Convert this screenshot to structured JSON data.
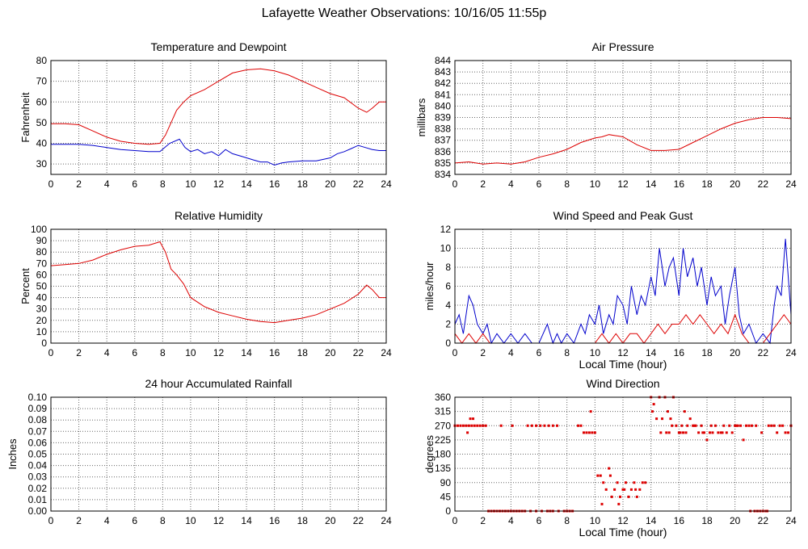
{
  "page": {
    "title": "Lafayette Weather Observations: 10/16/05 11:55p"
  },
  "colors": {
    "red": "#dd0000",
    "blue": "#0000cc",
    "grid": "#666666",
    "frame": "#000000"
  },
  "chart_data": [
    {
      "id": "temp",
      "type": "line",
      "title": "Temperature and Dewpoint",
      "xlabel": "",
      "ylabel": "Fahrenheit",
      "xlim": [
        0,
        24
      ],
      "ylim": [
        25,
        80
      ],
      "xticks": [
        0,
        2,
        4,
        6,
        8,
        10,
        12,
        14,
        16,
        18,
        20,
        22,
        24
      ],
      "yticks": [
        30,
        40,
        50,
        60,
        70,
        80
      ],
      "grid": true,
      "series": [
        {
          "color": "red",
          "x": [
            0,
            1,
            2,
            3,
            4,
            5,
            6,
            7,
            7.8,
            8.2,
            8.6,
            9,
            9.5,
            10,
            11,
            12,
            13,
            14,
            15,
            16,
            17,
            18,
            19,
            20,
            21,
            22,
            22.6,
            23,
            23.5,
            24
          ],
          "y": [
            49.5,
            49.5,
            49,
            46,
            43,
            41,
            40,
            39.5,
            40,
            44,
            50,
            56,
            60,
            63,
            66,
            70,
            74,
            75.5,
            76,
            75,
            73,
            70,
            67,
            64,
            62,
            57,
            55,
            57,
            60,
            60
          ]
        },
        {
          "color": "blue",
          "x": [
            0,
            1,
            2,
            3,
            4,
            5,
            6,
            7,
            7.8,
            8.5,
            9.2,
            9.6,
            10,
            10.5,
            11,
            11.5,
            12,
            12.5,
            13,
            13.5,
            14,
            14.5,
            15,
            15.5,
            16,
            16.5,
            17,
            18,
            19,
            20,
            20.5,
            21,
            21.5,
            22,
            22.5,
            23,
            23.5,
            24
          ],
          "y": [
            39.5,
            39.5,
            39.5,
            39,
            38,
            37,
            36.5,
            36,
            36,
            40,
            42,
            38,
            36,
            37,
            35,
            36,
            34,
            37,
            35,
            34,
            33,
            32,
            31,
            31,
            29.5,
            30.5,
            31,
            31.5,
            31.5,
            33,
            35,
            36,
            37.5,
            39,
            38,
            37,
            36.5,
            36.5
          ]
        }
      ]
    },
    {
      "id": "pressure",
      "type": "line",
      "title": "Air Pressure",
      "xlabel": "",
      "ylabel": "millibars",
      "xlim": [
        0,
        24
      ],
      "ylim": [
        834,
        844
      ],
      "xticks": [
        0,
        2,
        4,
        6,
        8,
        10,
        12,
        14,
        16,
        18,
        20,
        22,
        24
      ],
      "yticks": [
        834,
        835,
        836,
        837,
        838,
        839,
        840,
        841,
        842,
        843,
        844
      ],
      "grid": true,
      "series": [
        {
          "color": "red",
          "x": [
            0,
            1,
            2,
            3,
            4,
            5,
            6,
            7,
            8,
            9,
            10,
            10.5,
            11,
            12,
            13,
            14,
            15,
            16,
            17,
            18,
            19,
            20,
            21,
            22,
            23,
            24
          ],
          "y": [
            835,
            835.1,
            834.9,
            835,
            834.9,
            835.1,
            835.5,
            835.8,
            836.2,
            836.8,
            837.2,
            837.3,
            837.5,
            837.3,
            836.6,
            836.1,
            836.1,
            836.2,
            836.8,
            837.4,
            838,
            838.5,
            838.8,
            839,
            839,
            838.9
          ]
        }
      ]
    },
    {
      "id": "humidity",
      "type": "line",
      "title": "Relative Humidity",
      "xlabel": "",
      "ylabel": "Percent",
      "xlim": [
        0,
        24
      ],
      "ylim": [
        0,
        100
      ],
      "xticks": [
        0,
        2,
        4,
        6,
        8,
        10,
        12,
        14,
        16,
        18,
        20,
        22,
        24
      ],
      "yticks": [
        0,
        10,
        20,
        30,
        40,
        50,
        60,
        70,
        80,
        90,
        100
      ],
      "grid": true,
      "series": [
        {
          "color": "red",
          "x": [
            0,
            1,
            2,
            3,
            4,
            5,
            6,
            7,
            7.8,
            8.2,
            8.6,
            9,
            9.5,
            10,
            11,
            12,
            13,
            14,
            15,
            16,
            17,
            18,
            19,
            20,
            21,
            22,
            22.6,
            23,
            23.5,
            24
          ],
          "y": [
            68,
            69,
            70,
            73,
            78,
            82,
            85,
            86,
            89,
            80,
            65,
            60,
            52,
            40,
            32,
            27,
            24,
            21,
            19,
            18,
            20,
            22,
            25,
            30,
            35,
            43,
            51,
            47,
            40,
            40
          ]
        }
      ]
    },
    {
      "id": "wind",
      "type": "line",
      "title": "Wind Speed and Peak Gust",
      "xlabel": "Local Time (hour)",
      "ylabel": "miles/hour",
      "xlim": [
        0,
        24
      ],
      "ylim": [
        0,
        12
      ],
      "xticks": [
        0,
        2,
        4,
        6,
        8,
        10,
        12,
        14,
        16,
        18,
        20,
        22,
        24
      ],
      "yticks": [
        0,
        2,
        4,
        6,
        8,
        10,
        12
      ],
      "grid": true,
      "series": [
        {
          "color": "blue",
          "x": [
            0,
            0.3,
            0.6,
            1,
            1.3,
            1.6,
            2,
            2.3,
            2.6,
            3,
            3.5,
            4,
            4.5,
            5,
            5.5,
            6,
            6.3,
            6.6,
            7,
            7.3,
            7.6,
            8,
            8.5,
            9,
            9.3,
            9.6,
            10,
            10.3,
            10.6,
            11,
            11.3,
            11.6,
            12,
            12.3,
            12.6,
            13,
            13.3,
            13.6,
            14,
            14.3,
            14.6,
            15,
            15.3,
            15.6,
            16,
            16.3,
            16.6,
            17,
            17.3,
            17.6,
            18,
            18.3,
            18.6,
            19,
            19.3,
            19.6,
            20,
            20.3,
            20.6,
            21,
            21.5,
            22,
            22.5,
            22.8,
            23,
            23.3,
            23.6,
            24
          ],
          "y": [
            2,
            3,
            1,
            5,
            4,
            2,
            1,
            2,
            0,
            1,
            0,
            1,
            0,
            1,
            0,
            0,
            1,
            2,
            0,
            1,
            0,
            1,
            0,
            2,
            1,
            3,
            2,
            4,
            1,
            3,
            2,
            5,
            4,
            2,
            6,
            3,
            5,
            4,
            7,
            5,
            10,
            6,
            8,
            9,
            5,
            10,
            7,
            9,
            6,
            8,
            4,
            7,
            5,
            6,
            2,
            5,
            8,
            3,
            1,
            2,
            0,
            1,
            0,
            4,
            6,
            5,
            11,
            3
          ]
        },
        {
          "color": "red",
          "x": [
            0,
            0.5,
            1,
            1.5,
            2,
            2.5,
            3,
            4,
            5,
            6,
            7,
            8,
            9,
            10,
            10.5,
            11,
            11.5,
            12,
            12.5,
            13,
            13.5,
            14,
            14.5,
            15,
            15.5,
            16,
            16.5,
            17,
            17.5,
            18,
            18.5,
            19,
            19.5,
            20,
            20.5,
            21,
            22,
            22.5,
            23,
            23.5,
            24
          ],
          "y": [
            1,
            0,
            1,
            0,
            1,
            0,
            0,
            0,
            0,
            0,
            0,
            0,
            0,
            0,
            1,
            0,
            1,
            0,
            1,
            1,
            0,
            1,
            2,
            1,
            2,
            2,
            3,
            2,
            3,
            2,
            1,
            2,
            1,
            3,
            1,
            0,
            0,
            1,
            2,
            3,
            2
          ]
        }
      ]
    },
    {
      "id": "rain",
      "type": "line",
      "title": "24 hour Accumulated Rainfall",
      "xlabel": "",
      "ylabel": "Inches",
      "xlim": [
        0,
        24
      ],
      "ylim": [
        0,
        0.1
      ],
      "xticks": [
        0,
        2,
        4,
        6,
        8,
        10,
        12,
        14,
        16,
        18,
        20,
        22,
        24
      ],
      "yticks": [
        "0.00",
        "0.01",
        "0.02",
        "0.03",
        "0.04",
        "0.05",
        "0.06",
        "0.07",
        "0.08",
        "0.09",
        "0.10"
      ],
      "grid": true,
      "series": [
        {
          "color": "red",
          "x": [
            0,
            24
          ],
          "y": [
            0,
            0
          ]
        }
      ]
    },
    {
      "id": "direction",
      "type": "scatter",
      "title": "Wind Direction",
      "xlabel": "Local Time (hour)",
      "ylabel": "degrees",
      "xlim": [
        0,
        24
      ],
      "ylim": [
        0,
        360
      ],
      "xticks": [
        0,
        2,
        4,
        6,
        8,
        10,
        12,
        14,
        16,
        18,
        20,
        22,
        24
      ],
      "yticks": [
        0,
        45,
        90,
        135,
        180,
        225,
        270,
        315,
        360
      ],
      "grid": true,
      "series": [
        {
          "color": "red",
          "x": [
            0,
            0.2,
            0.4,
            0.6,
            0.8,
            1,
            1.2,
            1.4,
            1.6,
            1.8,
            2,
            2.2,
            0.9,
            1.1,
            1.3,
            2.4,
            2.6,
            2.8,
            3,
            3.2,
            3.4,
            3.6,
            3.8,
            4,
            4.2,
            4.4,
            4.6,
            4.8,
            5,
            5.4,
            5.8,
            6.2,
            6.6,
            6.8,
            7,
            7.4,
            7.8,
            8,
            8.2,
            8.4,
            3.3,
            4.1,
            5.2,
            5.5,
            5.8,
            6.1,
            6.4,
            6.7,
            7,
            7.3,
            8.8,
            9,
            9.2,
            9.4,
            9.6,
            9.8,
            10,
            9.7,
            10.2,
            10.4,
            10.6,
            10.8,
            11,
            11.2,
            11.4,
            11.6,
            11.8,
            12,
            12.2,
            12.4,
            12.6,
            12.8,
            13,
            13.2,
            13.4,
            10.5,
            11.1,
            11.7,
            12.1,
            12.9,
            13.6,
            14,
            14.2,
            14.4,
            14.6,
            14.8,
            15,
            15.2,
            15.4,
            15.6,
            14.1,
            14.7,
            15.3,
            15.8,
            16,
            16.2,
            16.4,
            16.6,
            16.8,
            17,
            17.2,
            17.4,
            17.6,
            17.8,
            18,
            18.2,
            18.4,
            18.6,
            18.8,
            19,
            19.2,
            19.4,
            19.6,
            19.8,
            20,
            20.2,
            20.4,
            20.6,
            20.8,
            21,
            21.2,
            21.4,
            21.6,
            21.8,
            22,
            22.2,
            22.4,
            22.6,
            22.8,
            23,
            23.2,
            23.4,
            23.6,
            23.8,
            24,
            16.1,
            16.5,
            17.1,
            17.7,
            18.3,
            19.1,
            20.1,
            21.1,
            21.5,
            21.9,
            22.3,
            15.1,
            15.5,
            16.3
          ],
          "y": [
            270,
            270,
            270,
            270,
            270,
            270,
            270,
            270,
            270,
            270,
            270,
            270,
            248,
            292,
            292,
            0,
            0,
            0,
            0,
            0,
            0,
            0,
            0,
            0,
            0,
            0,
            0,
            0,
            0,
            0,
            0,
            0,
            0,
            0,
            0,
            0,
            0,
            0,
            0,
            0,
            270,
            270,
            270,
            270,
            270,
            270,
            270,
            270,
            270,
            270,
            270,
            270,
            248,
            248,
            248,
            248,
            248,
            315,
            112,
            112,
            90,
            68,
            135,
            45,
            68,
            90,
            45,
            68,
            90,
            45,
            68,
            90,
            45,
            68,
            90,
            22,
            112,
            22,
            68,
            68,
            90,
            360,
            338,
            292,
            360,
            292,
            360,
            315,
            292,
            360,
            315,
            248,
            248,
            270,
            248,
            270,
            315,
            270,
            292,
            270,
            270,
            248,
            270,
            248,
            225,
            248,
            248,
            270,
            248,
            248,
            270,
            248,
            270,
            248,
            270,
            270,
            270,
            225,
            270,
            270,
            270,
            0,
            0,
            0,
            0,
            0,
            270,
            270,
            270,
            248,
            270,
            270,
            248,
            248,
            270,
            248,
            248,
            270,
            248,
            270,
            248,
            270,
            0,
            270,
            248,
            0,
            248,
            270,
            248
          ]
        }
      ]
    }
  ]
}
